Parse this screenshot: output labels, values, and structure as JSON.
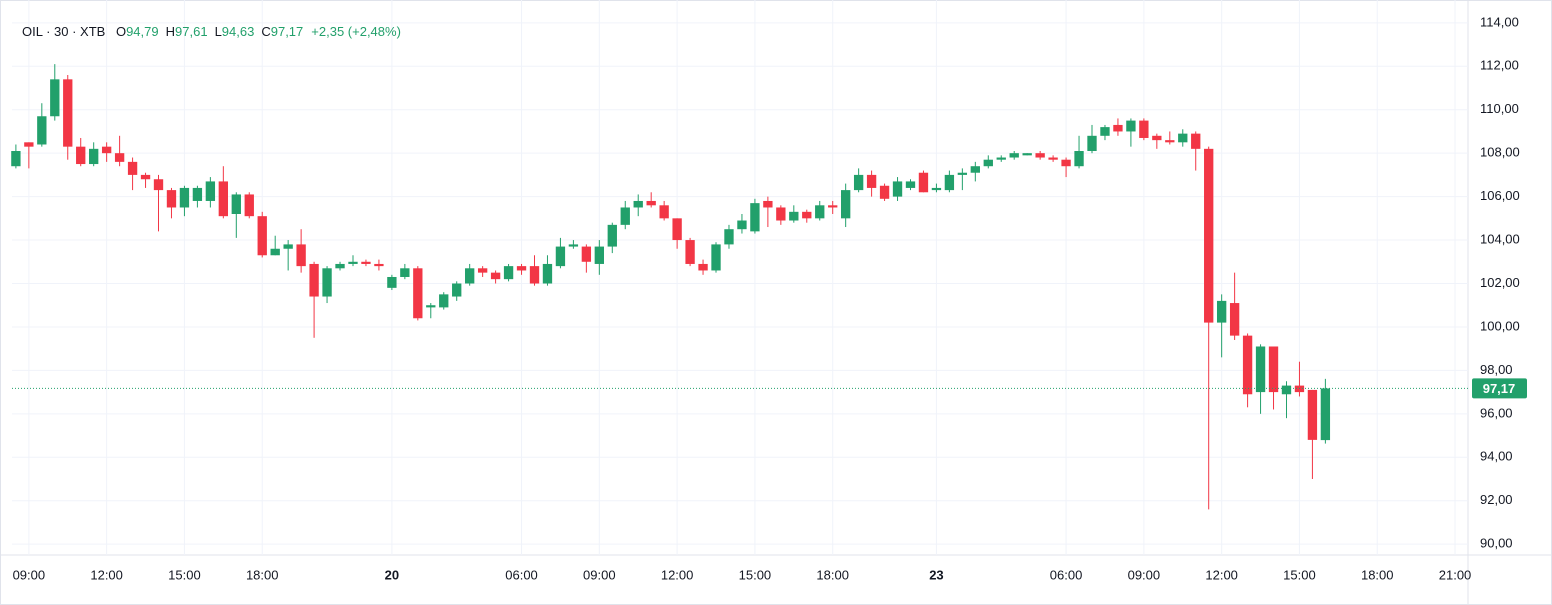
{
  "chart_data": {
    "type": "candlestick",
    "symbol": "OIL · 30 · XTB",
    "ohlc": [
      {
        "key": "O",
        "text": "94,79"
      },
      {
        "key": "H",
        "text": "97,61"
      },
      {
        "key": "L",
        "text": "94,63"
      },
      {
        "key": "C",
        "text": "97,17"
      }
    ],
    "change": "+2,35 (+2,48%)",
    "up_color": "#22a06b",
    "down_color": "#f23645",
    "grid": true,
    "x": [
      0,
      1,
      2,
      3,
      4,
      5,
      6,
      7,
      8,
      9,
      10,
      11,
      12,
      13,
      14,
      15,
      16,
      17,
      18,
      19,
      20,
      21,
      22,
      23,
      24,
      25,
      26,
      27,
      28,
      29,
      30,
      31,
      32,
      33,
      34,
      35,
      36,
      37,
      38,
      39,
      40,
      41,
      42,
      43,
      44,
      45,
      46,
      47,
      48,
      49,
      50,
      51,
      52,
      53,
      54,
      55,
      56,
      57,
      58,
      59,
      60,
      61,
      62,
      63,
      64,
      65,
      66,
      67,
      68,
      69,
      70,
      71,
      72,
      73,
      74,
      75,
      76,
      77,
      78,
      79,
      80,
      81,
      82,
      83,
      84,
      85,
      86,
      87,
      88,
      89,
      90,
      91,
      92,
      93,
      94,
      95,
      96,
      97,
      98,
      99,
      100,
      101
    ],
    "open": [
      107.4,
      108.5,
      108.4,
      109.7,
      111.4,
      108.3,
      107.5,
      108.3,
      108.0,
      107.6,
      107.0,
      106.8,
      106.3,
      105.5,
      105.8,
      105.8,
      106.7,
      105.2,
      106.1,
      105.1,
      103.3,
      103.6,
      103.8,
      102.9,
      101.4,
      102.7,
      102.9,
      103.0,
      102.9,
      101.8,
      102.3,
      102.7,
      100.9,
      100.9,
      101.4,
      102.0,
      102.7,
      102.5,
      102.2,
      102.8,
      102.8,
      102.0,
      102.8,
      103.7,
      103.7,
      102.9,
      103.7,
      104.7,
      105.5,
      105.8,
      105.6,
      105.0,
      104.0,
      102.9,
      102.6,
      103.8,
      104.5,
      104.4,
      105.8,
      105.5,
      104.9,
      105.3,
      105.0,
      105.6,
      105.0,
      106.3,
      107.0,
      106.5,
      106.0,
      106.4,
      107.1,
      106.3,
      106.3,
      107.0,
      107.1,
      107.4,
      107.7,
      107.8,
      107.9,
      108.0,
      107.8,
      107.7,
      107.4,
      108.1,
      108.8,
      109.3,
      109.0,
      109.5,
      108.8,
      108.6,
      108.5,
      108.9,
      108.2,
      100.2,
      101.1,
      99.6,
      97.0,
      99.1,
      96.9,
      97.3,
      97.1,
      94.79
    ],
    "high": [
      108.4,
      108.5,
      110.3,
      112.1,
      111.6,
      108.7,
      108.5,
      108.5,
      108.8,
      107.8,
      107.1,
      107.0,
      106.4,
      106.5,
      106.5,
      106.9,
      107.4,
      106.2,
      106.2,
      105.3,
      104.2,
      104.0,
      104.5,
      103.0,
      102.8,
      103.0,
      103.3,
      103.1,
      103.1,
      102.4,
      102.9,
      102.8,
      101.1,
      101.6,
      102.1,
      102.9,
      102.8,
      102.6,
      102.9,
      102.9,
      103.3,
      103.3,
      104.1,
      104.0,
      103.8,
      104.0,
      104.8,
      105.8,
      106.1,
      106.2,
      105.8,
      105.0,
      104.1,
      103.1,
      103.9,
      104.7,
      105.2,
      105.9,
      106.0,
      105.6,
      105.6,
      105.4,
      105.8,
      105.8,
      106.6,
      107.3,
      107.2,
      106.6,
      106.9,
      106.8,
      107.2,
      106.6,
      107.2,
      107.3,
      107.6,
      107.9,
      107.9,
      108.1,
      108.0,
      108.1,
      107.9,
      107.8,
      108.8,
      109.3,
      109.3,
      109.6,
      109.6,
      109.6,
      108.9,
      109.0,
      109.1,
      109.0,
      108.3,
      101.5,
      102.5,
      99.7,
      99.2,
      99.1,
      97.5,
      98.4,
      97.1,
      97.61
    ],
    "low": [
      107.3,
      107.3,
      108.3,
      109.5,
      107.7,
      107.4,
      107.4,
      107.6,
      107.4,
      106.3,
      106.4,
      104.4,
      105.0,
      105.1,
      105.5,
      105.5,
      105.0,
      104.1,
      105.0,
      103.2,
      103.3,
      102.6,
      102.5,
      99.5,
      101.1,
      102.6,
      102.8,
      102.8,
      102.6,
      101.7,
      102.2,
      100.3,
      100.4,
      100.8,
      101.2,
      101.9,
      102.3,
      102.0,
      102.1,
      102.4,
      101.9,
      101.9,
      102.7,
      103.6,
      102.5,
      102.4,
      103.4,
      104.5,
      105.1,
      105.5,
      104.9,
      103.6,
      102.8,
      102.4,
      102.5,
      103.6,
      104.3,
      104.3,
      104.6,
      104.7,
      104.8,
      104.8,
      104.9,
      105.2,
      104.6,
      106.2,
      106.0,
      105.8,
      105.8,
      106.3,
      106.2,
      106.2,
      106.2,
      106.3,
      106.7,
      107.3,
      107.6,
      107.7,
      107.9,
      107.7,
      107.6,
      106.9,
      107.3,
      108.0,
      108.6,
      108.8,
      108.3,
      108.6,
      108.2,
      108.4,
      108.3,
      107.2,
      91.6,
      98.6,
      99.4,
      96.3,
      96.0,
      96.2,
      95.8,
      96.8,
      93.0,
      94.63
    ],
    "close": [
      108.1,
      108.3,
      109.7,
      111.4,
      108.3,
      107.5,
      108.2,
      108.0,
      107.6,
      107.0,
      106.8,
      106.3,
      105.5,
      106.4,
      106.4,
      106.7,
      105.1,
      106.1,
      105.1,
      103.3,
      103.6,
      103.8,
      102.8,
      101.4,
      102.7,
      102.9,
      103.0,
      102.9,
      102.8,
      102.3,
      102.7,
      100.4,
      101.0,
      101.5,
      102.0,
      102.7,
      102.5,
      102.2,
      102.8,
      102.6,
      102.0,
      102.9,
      103.7,
      103.8,
      103.0,
      103.7,
      104.7,
      105.5,
      105.8,
      105.6,
      105.0,
      104.0,
      102.9,
      102.6,
      103.8,
      104.5,
      104.9,
      105.7,
      105.5,
      104.9,
      105.3,
      105.0,
      105.6,
      105.5,
      106.3,
      107.0,
      106.4,
      105.9,
      106.7,
      106.7,
      106.2,
      106.4,
      107.0,
      107.1,
      107.4,
      107.7,
      107.8,
      108.0,
      108.0,
      107.8,
      107.7,
      107.4,
      108.1,
      108.8,
      109.2,
      109.0,
      109.5,
      108.7,
      108.6,
      108.5,
      108.9,
      108.2,
      100.2,
      101.2,
      99.6,
      96.9,
      99.1,
      97.0,
      97.3,
      97.0,
      94.8,
      97.17
    ],
    "last_price": {
      "value": 97.17,
      "label": "97,17"
    },
    "xlim": [
      -0.3,
      112
    ],
    "xticks": [
      {
        "value": 1,
        "label": "09:00"
      },
      {
        "value": 7,
        "label": "12:00"
      },
      {
        "value": 13,
        "label": "15:00"
      },
      {
        "value": 19,
        "label": "18:00"
      },
      {
        "value": 29,
        "label": "20"
      },
      {
        "value": 39,
        "label": "06:00"
      },
      {
        "value": 45,
        "label": "09:00"
      },
      {
        "value": 51,
        "label": "12:00"
      },
      {
        "value": 57,
        "label": "15:00"
      },
      {
        "value": 63,
        "label": "18:00"
      },
      {
        "value": 71,
        "label": "23"
      },
      {
        "value": 81,
        "label": "06:00"
      },
      {
        "value": 87,
        "label": "09:00"
      },
      {
        "value": 93,
        "label": "12:00"
      },
      {
        "value": 99,
        "label": "15:00"
      },
      {
        "value": 105,
        "label": "18:00"
      },
      {
        "value": 111,
        "label": "21:00"
      }
    ],
    "ylim": [
      89.5,
      114.5
    ],
    "yticks": [
      {
        "value": 90,
        "label": "90,00"
      },
      {
        "value": 92,
        "label": "92,00"
      },
      {
        "value": 94,
        "label": "94,00"
      },
      {
        "value": 96,
        "label": "96,00"
      },
      {
        "value": 98,
        "label": "98,00"
      },
      {
        "value": 100,
        "label": "100,00"
      },
      {
        "value": 102,
        "label": "102,00"
      },
      {
        "value": 104,
        "label": "104,00"
      },
      {
        "value": 106,
        "label": "106,00"
      },
      {
        "value": 108,
        "label": "108,00"
      },
      {
        "value": 110,
        "label": "110,00"
      },
      {
        "value": 112,
        "label": "112,00"
      },
      {
        "value": 114,
        "label": "114,00"
      }
    ]
  }
}
